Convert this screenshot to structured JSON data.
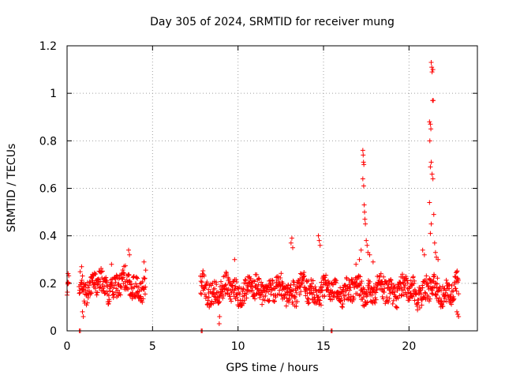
{
  "chart_data": {
    "type": "scatter",
    "title": "Day 305 of 2024, SRMTID for receiver mung",
    "xlabel": "GPS time / hours",
    "ylabel": "SRMTID / TECUs",
    "xlim": [
      0,
      24
    ],
    "ylim": [
      0,
      1.2
    ],
    "xticks": [
      0,
      5,
      10,
      15,
      20
    ],
    "yticks": [
      0,
      0.2,
      0.4,
      0.6,
      0.8,
      1,
      1.2
    ],
    "ytick_labels": [
      "0",
      "0.2",
      "0.4",
      "0.6",
      "0.8",
      "1",
      "1.2"
    ],
    "grid": true,
    "colors": {
      "points": "#ff0000",
      "grid": "#a0a0a0",
      "axis": "#000000"
    },
    "series": [
      {
        "name": "SRMTID",
        "marker": "plus",
        "segments": [
          {
            "x_start": 0.0,
            "x_end": 0.1,
            "baseline": 0.2,
            "amp": 0.01
          },
          {
            "x_start": 0.7,
            "x_end": 4.6,
            "baseline": 0.19,
            "amp": 0.06
          },
          {
            "x_start": 7.8,
            "x_end": 22.9,
            "baseline": 0.17,
            "amp": 0.06
          }
        ],
        "points": [
          [
            0.05,
            0.205
          ],
          [
            0.07,
            0.2
          ],
          [
            0.72,
            0.0
          ],
          [
            0.78,
            0.0
          ],
          [
            0.85,
            0.27
          ],
          [
            0.9,
            0.08
          ],
          [
            0.95,
            0.06
          ],
          [
            3.6,
            0.34
          ],
          [
            3.65,
            0.32
          ],
          [
            4.5,
            0.29
          ],
          [
            2.6,
            0.28
          ],
          [
            7.85,
            0.0
          ],
          [
            7.9,
            0.0
          ],
          [
            8.9,
            0.03
          ],
          [
            8.92,
            0.06
          ],
          [
            9.8,
            0.3
          ],
          [
            13.1,
            0.37
          ],
          [
            13.15,
            0.39
          ],
          [
            13.2,
            0.35
          ],
          [
            14.7,
            0.4
          ],
          [
            14.75,
            0.38
          ],
          [
            14.8,
            0.36
          ],
          [
            15.45,
            0.0
          ],
          [
            15.5,
            0.0
          ],
          [
            17.3,
            0.76
          ],
          [
            17.32,
            0.74
          ],
          [
            17.34,
            0.71
          ],
          [
            17.36,
            0.7
          ],
          [
            17.3,
            0.64
          ],
          [
            17.35,
            0.61
          ],
          [
            17.38,
            0.53
          ],
          [
            17.4,
            0.5
          ],
          [
            17.42,
            0.47
          ],
          [
            17.45,
            0.45
          ],
          [
            17.5,
            0.38
          ],
          [
            17.55,
            0.36
          ],
          [
            17.6,
            0.33
          ],
          [
            17.7,
            0.32
          ],
          [
            17.2,
            0.34
          ],
          [
            17.1,
            0.3
          ],
          [
            16.9,
            0.28
          ],
          [
            17.9,
            0.29
          ],
          [
            21.3,
            1.13
          ],
          [
            21.33,
            1.11
          ],
          [
            21.35,
            1.09
          ],
          [
            21.4,
            1.1
          ],
          [
            21.38,
            0.97
          ],
          [
            21.42,
            0.97
          ],
          [
            21.2,
            0.88
          ],
          [
            21.25,
            0.87
          ],
          [
            21.28,
            0.85
          ],
          [
            21.22,
            0.8
          ],
          [
            21.3,
            0.71
          ],
          [
            21.25,
            0.69
          ],
          [
            21.35,
            0.66
          ],
          [
            21.4,
            0.64
          ],
          [
            21.2,
            0.54
          ],
          [
            21.45,
            0.49
          ],
          [
            21.3,
            0.45
          ],
          [
            21.25,
            0.41
          ],
          [
            21.5,
            0.37
          ],
          [
            21.55,
            0.33
          ],
          [
            21.6,
            0.31
          ],
          [
            21.7,
            0.3
          ],
          [
            20.8,
            0.34
          ],
          [
            20.9,
            0.32
          ],
          [
            22.8,
            0.08
          ],
          [
            22.85,
            0.07
          ],
          [
            22.9,
            0.06
          ]
        ]
      }
    ]
  }
}
